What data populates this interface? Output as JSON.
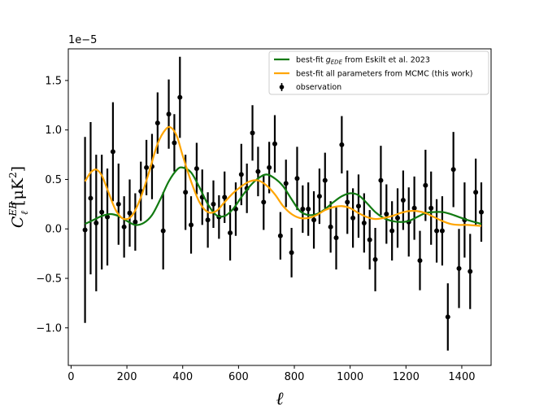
{
  "chart_data": {
    "type": "scatter",
    "title": "",
    "scale_label": "1e−5",
    "xlabel": "ℓ",
    "ylabel": {
      "base": "C",
      "sub": "ℓ",
      "sup": "EB",
      "units": "[μK",
      "units_sup": "2",
      "units_close": "]"
    },
    "xlim": [
      -10,
      1505
    ],
    "ylim": [
      -1.38,
      1.82
    ],
    "xticks": [
      0,
      200,
      400,
      600,
      800,
      1000,
      1200,
      1400
    ],
    "xtick_labels": [
      "0",
      "200",
      "400",
      "600",
      "800",
      "1000",
      "1200",
      "1400"
    ],
    "yticks": [
      -1.0,
      -0.5,
      0.0,
      0.5,
      1.0,
      1.5
    ],
    "ytick_labels": [
      "−1.0",
      "−0.5",
      "0.0",
      "0.5",
      "1.0",
      "1.5"
    ],
    "legend_position": "top-right",
    "series": [
      {
        "name": "best-fit g_EDE from Eskilt et al. 2023",
        "label_prefix": "best-fit ",
        "label_sym": "g",
        "label_sub": "EDE",
        "label_suffix": " from Eskilt et al. 2023",
        "color": "#117a11",
        "type": "line",
        "x": [
          50,
          80,
          110,
          140,
          170,
          200,
          230,
          260,
          290,
          320,
          350,
          380,
          400,
          430,
          460,
          490,
          520,
          550,
          580,
          610,
          640,
          670,
          700,
          730,
          760,
          790,
          820,
          850,
          880,
          910,
          940,
          970,
          1000,
          1030,
          1060,
          1090,
          1120,
          1150,
          1180,
          1210,
          1240,
          1270,
          1300,
          1330,
          1360,
          1390,
          1420,
          1470
        ],
        "y": [
          0.05,
          0.09,
          0.13,
          0.15,
          0.13,
          0.08,
          0.04,
          0.06,
          0.14,
          0.3,
          0.48,
          0.6,
          0.62,
          0.57,
          0.42,
          0.25,
          0.14,
          0.13,
          0.2,
          0.32,
          0.43,
          0.51,
          0.55,
          0.51,
          0.43,
          0.3,
          0.18,
          0.14,
          0.15,
          0.2,
          0.27,
          0.33,
          0.36,
          0.34,
          0.26,
          0.17,
          0.11,
          0.08,
          0.07,
          0.08,
          0.12,
          0.16,
          0.17,
          0.17,
          0.15,
          0.12,
          0.09,
          0.05
        ]
      },
      {
        "name": "best-fit all parameters from MCMC (this work)",
        "color": "#ffa500",
        "type": "line",
        "x": [
          50,
          70,
          90,
          110,
          130,
          160,
          190,
          220,
          250,
          280,
          310,
          340,
          360,
          380,
          400,
          430,
          460,
          490,
          520,
          550,
          580,
          610,
          640,
          670,
          700,
          730,
          760,
          790,
          820,
          850,
          880,
          910,
          940,
          970,
          1000,
          1030,
          1060,
          1090,
          1120,
          1150,
          1180,
          1210,
          1240,
          1270,
          1300,
          1330,
          1360,
          1390,
          1420,
          1470
        ],
        "y": [
          0.48,
          0.57,
          0.6,
          0.54,
          0.4,
          0.19,
          0.1,
          0.14,
          0.32,
          0.58,
          0.86,
          1.01,
          1.02,
          0.93,
          0.74,
          0.48,
          0.27,
          0.17,
          0.18,
          0.27,
          0.36,
          0.43,
          0.48,
          0.49,
          0.44,
          0.35,
          0.23,
          0.15,
          0.11,
          0.11,
          0.14,
          0.19,
          0.22,
          0.23,
          0.21,
          0.16,
          0.12,
          0.1,
          0.11,
          0.13,
          0.16,
          0.18,
          0.18,
          0.16,
          0.12,
          0.08,
          0.05,
          0.04,
          0.04,
          0.03
        ]
      },
      {
        "name": "observation",
        "color": "#000000",
        "type": "errorbar",
        "points": [
          {
            "x": 50,
            "y": -0.01,
            "err": 0.94
          },
          {
            "x": 70,
            "y": 0.31,
            "err": 0.77
          },
          {
            "x": 90,
            "y": 0.06,
            "err": 0.69
          },
          {
            "x": 110,
            "y": 0.17,
            "err": 0.58
          },
          {
            "x": 130,
            "y": 0.12,
            "err": 0.49
          },
          {
            "x": 150,
            "y": 0.78,
            "err": 0.5
          },
          {
            "x": 170,
            "y": 0.25,
            "err": 0.41
          },
          {
            "x": 190,
            "y": 0.02,
            "err": 0.31
          },
          {
            "x": 210,
            "y": 0.16,
            "err": 0.34
          },
          {
            "x": 230,
            "y": 0.07,
            "err": 0.29
          },
          {
            "x": 250,
            "y": 0.38,
            "err": 0.3
          },
          {
            "x": 270,
            "y": 0.62,
            "err": 0.28
          },
          {
            "x": 290,
            "y": 0.63,
            "err": 0.33
          },
          {
            "x": 310,
            "y": 1.07,
            "err": 0.31
          },
          {
            "x": 330,
            "y": -0.02,
            "err": 0.39
          },
          {
            "x": 350,
            "y": 1.16,
            "err": 0.35
          },
          {
            "x": 370,
            "y": 0.87,
            "err": 0.29
          },
          {
            "x": 390,
            "y": 1.33,
            "err": 0.41
          },
          {
            "x": 410,
            "y": 0.37,
            "err": 0.38
          },
          {
            "x": 430,
            "y": 0.04,
            "err": 0.29
          },
          {
            "x": 450,
            "y": 0.61,
            "err": 0.26
          },
          {
            "x": 470,
            "y": 0.32,
            "err": 0.28
          },
          {
            "x": 490,
            "y": 0.09,
            "err": 0.28
          },
          {
            "x": 510,
            "y": 0.25,
            "err": 0.24
          },
          {
            "x": 530,
            "y": 0.12,
            "err": 0.22
          },
          {
            "x": 550,
            "y": 0.32,
            "err": 0.26
          },
          {
            "x": 570,
            "y": -0.04,
            "err": 0.28
          },
          {
            "x": 590,
            "y": 0.2,
            "err": 0.27
          },
          {
            "x": 610,
            "y": 0.55,
            "err": 0.31
          },
          {
            "x": 630,
            "y": 0.41,
            "err": 0.25
          },
          {
            "x": 650,
            "y": 0.97,
            "err": 0.28
          },
          {
            "x": 670,
            "y": 0.58,
            "err": 0.25
          },
          {
            "x": 690,
            "y": 0.27,
            "err": 0.28
          },
          {
            "x": 710,
            "y": 0.62,
            "err": 0.26
          },
          {
            "x": 730,
            "y": 0.86,
            "err": 0.29
          },
          {
            "x": 750,
            "y": -0.07,
            "err": 0.24
          },
          {
            "x": 770,
            "y": 0.46,
            "err": 0.24
          },
          {
            "x": 790,
            "y": -0.24,
            "err": 0.25
          },
          {
            "x": 810,
            "y": 0.51,
            "err": 0.32
          },
          {
            "x": 830,
            "y": 0.2,
            "err": 0.24
          },
          {
            "x": 850,
            "y": 0.2,
            "err": 0.27
          },
          {
            "x": 870,
            "y": 0.09,
            "err": 0.29
          },
          {
            "x": 890,
            "y": 0.33,
            "err": 0.28
          },
          {
            "x": 910,
            "y": 0.49,
            "err": 0.28
          },
          {
            "x": 930,
            "y": 0.02,
            "err": 0.26
          },
          {
            "x": 950,
            "y": -0.09,
            "err": 0.32
          },
          {
            "x": 970,
            "y": 0.85,
            "err": 0.29
          },
          {
            "x": 990,
            "y": 0.27,
            "err": 0.32
          },
          {
            "x": 1010,
            "y": 0.11,
            "err": 0.3
          },
          {
            "x": 1030,
            "y": 0.23,
            "err": 0.32
          },
          {
            "x": 1050,
            "y": 0.06,
            "err": 0.3
          },
          {
            "x": 1070,
            "y": -0.11,
            "err": 0.3
          },
          {
            "x": 1090,
            "y": -0.31,
            "err": 0.32
          },
          {
            "x": 1110,
            "y": 0.49,
            "err": 0.35
          },
          {
            "x": 1130,
            "y": 0.15,
            "err": 0.3
          },
          {
            "x": 1150,
            "y": -0.02,
            "err": 0.3
          },
          {
            "x": 1170,
            "y": 0.11,
            "err": 0.3
          },
          {
            "x": 1190,
            "y": 0.29,
            "err": 0.3
          },
          {
            "x": 1210,
            "y": 0.07,
            "err": 0.35
          },
          {
            "x": 1230,
            "y": 0.21,
            "err": 0.32
          },
          {
            "x": 1250,
            "y": -0.32,
            "err": 0.3
          },
          {
            "x": 1270,
            "y": 0.44,
            "err": 0.36
          },
          {
            "x": 1290,
            "y": 0.21,
            "err": 0.37
          },
          {
            "x": 1310,
            "y": -0.02,
            "err": 0.32
          },
          {
            "x": 1330,
            "y": -0.02,
            "err": 0.35
          },
          {
            "x": 1350,
            "y": -0.89,
            "err": 0.34
          },
          {
            "x": 1370,
            "y": 0.6,
            "err": 0.38
          },
          {
            "x": 1390,
            "y": -0.4,
            "err": 0.4
          },
          {
            "x": 1410,
            "y": 0.09,
            "err": 0.38
          },
          {
            "x": 1430,
            "y": -0.43,
            "err": 0.38
          },
          {
            "x": 1450,
            "y": 0.37,
            "err": 0.34
          },
          {
            "x": 1470,
            "y": 0.17,
            "err": 0.3
          }
        ]
      }
    ]
  }
}
